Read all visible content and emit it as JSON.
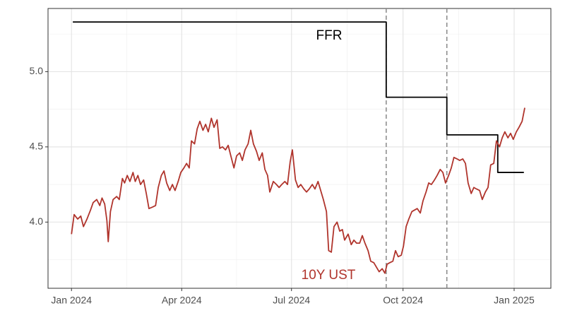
{
  "chart_data": {
    "type": "line",
    "xlim": [
      2023.947,
      2025.083
    ],
    "xticks": [
      {
        "value": 2024.0,
        "label": "Jan 2024"
      },
      {
        "value": 2024.249,
        "label": "Apr 2024"
      },
      {
        "value": 2024.497,
        "label": "Jul 2024"
      },
      {
        "value": 2024.749,
        "label": "Oct 2024"
      },
      {
        "value": 2025.0,
        "label": "Jan 2025"
      }
    ],
    "ylim": [
      3.56,
      5.42
    ],
    "yticks": [
      {
        "value": 4.0,
        "label": "4.0"
      },
      {
        "value": 4.5,
        "label": "4.5"
      },
      {
        "value": 5.0,
        "label": "5.0"
      }
    ],
    "grid": true,
    "vlines": [
      2024.711,
      2024.848
    ],
    "series": [
      {
        "name": "FFR",
        "color": "#000000",
        "x": [
          2024.003,
          2024.711,
          2024.711,
          2024.848,
          2024.848,
          2024.963,
          2024.963,
          2025.022
        ],
        "values": [
          5.33,
          5.33,
          4.83,
          4.83,
          4.58,
          4.58,
          4.33,
          4.33
        ]
      },
      {
        "name": "10Y UST",
        "color": "#b0342c",
        "x": [
          2024.0,
          2024.006,
          2024.014,
          2024.021,
          2024.027,
          2024.035,
          2024.043,
          2024.049,
          2024.057,
          2024.064,
          2024.069,
          2024.075,
          2024.08,
          2024.083,
          2024.088,
          2024.094,
          2024.102,
          2024.108,
          2024.115,
          2024.12,
          2024.126,
          2024.132,
          2024.139,
          2024.144,
          2024.15,
          2024.156,
          2024.163,
          2024.169,
          2024.175,
          2024.183,
          2024.19,
          2024.196,
          2024.203,
          2024.209,
          2024.215,
          2024.222,
          2024.228,
          2024.234,
          2024.241,
          2024.247,
          2024.254,
          2024.26,
          2024.266,
          2024.271,
          2024.278,
          2024.284,
          2024.29,
          2024.297,
          2024.303,
          2024.309,
          2024.316,
          2024.322,
          2024.329,
          2024.335,
          2024.341,
          2024.348,
          2024.354,
          2024.36,
          2024.367,
          2024.373,
          2024.38,
          2024.386,
          2024.392,
          2024.399,
          2024.405,
          2024.411,
          2024.418,
          2024.424,
          2024.431,
          2024.437,
          2024.443,
          2024.448,
          2024.456,
          2024.463,
          2024.469,
          2024.475,
          2024.482,
          2024.488,
          2024.494,
          2024.499,
          2024.506,
          2024.512,
          2024.518,
          2024.525,
          2024.531,
          2024.537,
          2024.544,
          2024.55,
          2024.557,
          2024.563,
          2024.569,
          2024.576,
          2024.581,
          2024.587,
          2024.593,
          2024.6,
          2024.606,
          2024.612,
          2024.617,
          2024.625,
          2024.632,
          2024.638,
          2024.644,
          2024.651,
          2024.657,
          2024.663,
          2024.67,
          2024.676,
          2024.683,
          2024.689,
          2024.695,
          2024.702,
          2024.708,
          2024.713,
          2024.719,
          2024.726,
          2024.732,
          2024.738,
          2024.745,
          2024.75,
          2024.756,
          2024.762,
          2024.769,
          2024.775,
          2024.781,
          2024.788,
          2024.794,
          2024.801,
          2024.807,
          2024.813,
          2024.82,
          2024.826,
          2024.833,
          2024.839,
          2024.845,
          2024.852,
          2024.858,
          2024.864,
          2024.871,
          2024.877,
          2024.884,
          2024.89,
          2024.896,
          2024.903,
          2024.909,
          2024.915,
          2024.922,
          2024.928,
          2024.935,
          2024.941,
          2024.947,
          2024.954,
          2024.96,
          2024.967,
          2024.973,
          2024.979,
          2024.986,
          2024.992,
          2024.998,
          2025.005,
          2025.011,
          2025.018,
          2025.024
        ],
        "values": [
          3.92,
          4.05,
          4.02,
          4.04,
          3.97,
          4.02,
          4.08,
          4.13,
          4.15,
          4.11,
          4.16,
          4.12,
          4.01,
          3.87,
          4.07,
          4.15,
          4.17,
          4.15,
          4.29,
          4.26,
          4.31,
          4.27,
          4.33,
          4.27,
          4.31,
          4.25,
          4.28,
          4.19,
          4.09,
          4.1,
          4.11,
          4.23,
          4.31,
          4.34,
          4.26,
          4.21,
          4.25,
          4.21,
          4.27,
          4.33,
          4.36,
          4.39,
          4.36,
          4.54,
          4.52,
          4.62,
          4.67,
          4.61,
          4.65,
          4.6,
          4.69,
          4.63,
          4.68,
          4.49,
          4.5,
          4.48,
          4.51,
          4.44,
          4.36,
          4.44,
          4.46,
          4.41,
          4.48,
          4.52,
          4.61,
          4.52,
          4.47,
          4.41,
          4.46,
          4.35,
          4.31,
          4.2,
          4.27,
          4.25,
          4.23,
          4.25,
          4.27,
          4.25,
          4.4,
          4.48,
          4.28,
          4.23,
          4.25,
          4.22,
          4.2,
          4.22,
          4.25,
          4.22,
          4.27,
          4.21,
          4.15,
          4.07,
          3.81,
          3.8,
          3.97,
          4.0,
          3.94,
          3.95,
          3.88,
          3.92,
          3.85,
          3.88,
          3.86,
          3.86,
          3.91,
          3.86,
          3.81,
          3.74,
          3.73,
          3.7,
          3.67,
          3.69,
          3.66,
          3.72,
          3.73,
          3.74,
          3.81,
          3.77,
          3.78,
          3.84,
          3.97,
          4.02,
          4.07,
          4.08,
          4.09,
          4.06,
          4.14,
          4.2,
          4.26,
          4.25,
          4.28,
          4.31,
          4.35,
          4.33,
          4.26,
          4.31,
          4.36,
          4.43,
          4.42,
          4.41,
          4.42,
          4.39,
          4.26,
          4.19,
          4.23,
          4.22,
          4.21,
          4.15,
          4.2,
          4.23,
          4.38,
          4.39,
          4.54,
          4.5,
          4.56,
          4.6,
          4.56,
          4.59,
          4.55,
          4.6,
          4.63,
          4.67,
          4.76
        ]
      }
    ]
  }
}
